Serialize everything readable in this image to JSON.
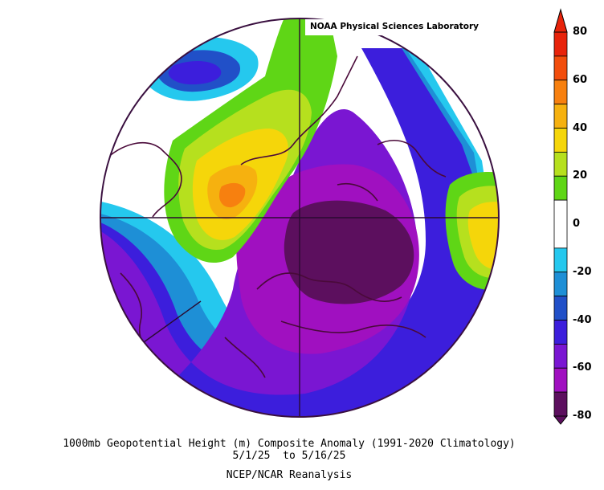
{
  "header": {
    "credit": "NOAA Physical Sciences Laboratory"
  },
  "caption": {
    "line1": "1000mb Geopotential Height (m) Composite Anomaly (1991-2020 Climatology)",
    "line2": "5/1/25  to 5/16/25",
    "line3": "NCEP/NCAR Reanalysis"
  },
  "colorbar": {
    "ticks": [
      {
        "label": "80",
        "value": 80
      },
      {
        "label": "60",
        "value": 60
      },
      {
        "label": "40",
        "value": 40
      },
      {
        "label": "20",
        "value": 20
      },
      {
        "label": "0",
        "value": 0
      },
      {
        "label": "-20",
        "value": -20
      },
      {
        "label": "-40",
        "value": -40
      },
      {
        "label": "-60",
        "value": -60
      },
      {
        "label": "-80",
        "value": -80
      }
    ],
    "bands": [
      {
        "min": 70,
        "max": 80,
        "color": "#e8230a"
      },
      {
        "min": 60,
        "max": 70,
        "color": "#f24d0c"
      },
      {
        "min": 50,
        "max": 60,
        "color": "#f7800f"
      },
      {
        "min": 40,
        "max": 50,
        "color": "#f6b10f"
      },
      {
        "min": 30,
        "max": 40,
        "color": "#f5d60a"
      },
      {
        "min": 20,
        "max": 30,
        "color": "#b6e01e"
      },
      {
        "min": 10,
        "max": 20,
        "color": "#5fd616"
      },
      {
        "min": -10,
        "max": 10,
        "color": "#ffffff"
      },
      {
        "min": -20,
        "max": -10,
        "color": "#25c8ee"
      },
      {
        "min": -30,
        "max": -20,
        "color": "#1e8fd6"
      },
      {
        "min": -40,
        "max": -30,
        "color": "#2150c8"
      },
      {
        "min": -50,
        "max": -40,
        "color": "#3c1edc"
      },
      {
        "min": -60,
        "max": -50,
        "color": "#7a16d2"
      },
      {
        "min": -70,
        "max": -60,
        "color": "#a010c0"
      },
      {
        "min": -80,
        "max": -70,
        "color": "#5c0f5e"
      }
    ]
  }
}
